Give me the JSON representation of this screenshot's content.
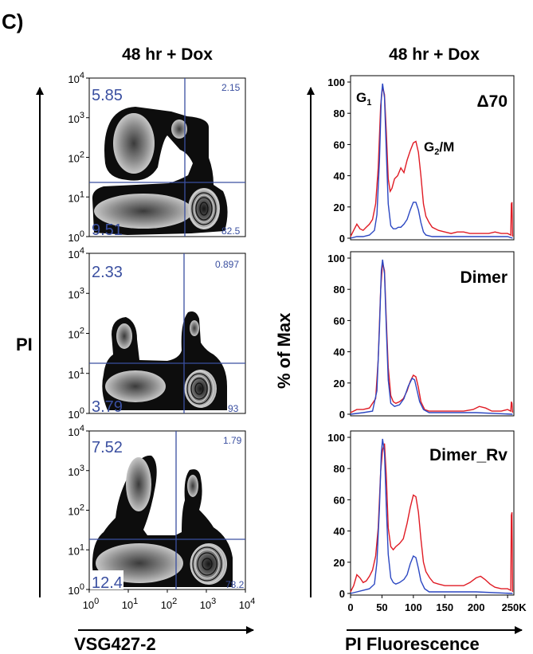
{
  "figure": {
    "panel_label": "C)",
    "flow_header": "48 hr + Dox",
    "hist_header": "48 hr + Dox",
    "flow_ylabel": "PI",
    "flow_xlabel": "VSG427-2",
    "hist_ylabel": "% of Max",
    "hist_xlabel": "PI Fluorescence"
  },
  "colors": {
    "quadrant_line": "#3a4fa0",
    "quadrant_text": "#3a4fa0",
    "series_red": "#e01b24",
    "series_blue": "#2b47c2",
    "contour_dark": "#101010"
  },
  "chart_data": [
    {
      "type": "heatmap",
      "panel": "flow-1",
      "xscale": "log",
      "yscale": "log",
      "xlim": [
        1,
        10000
      ],
      "ylim": [
        1,
        10000
      ],
      "x_ticks": [
        "10⁰",
        "10¹",
        "10²",
        "10³",
        "10⁴"
      ],
      "y_ticks": [
        "10⁰",
        "10¹",
        "10²",
        "10³",
        "10⁴"
      ],
      "quadrant_gate": {
        "x": 180,
        "y": 28
      },
      "quadrants": {
        "upper_left": "5.85",
        "upper_right": "2.15",
        "lower_left": "9.51",
        "lower_right": "82.5"
      }
    },
    {
      "type": "heatmap",
      "panel": "flow-2",
      "xscale": "log",
      "yscale": "log",
      "xlim": [
        1,
        10000
      ],
      "ylim": [
        1,
        10000
      ],
      "x_ticks": [
        "10⁰",
        "10¹",
        "10²",
        "10³",
        "10⁴"
      ],
      "y_ticks": [
        "10⁰",
        "10¹",
        "10²",
        "10³",
        "10⁴"
      ],
      "quadrant_gate": {
        "x": 180,
        "y": 22
      },
      "quadrants": {
        "upper_left": "2.33",
        "upper_right": "0.897",
        "lower_left": "3.79",
        "lower_right": "93"
      }
    },
    {
      "type": "heatmap",
      "panel": "flow-3",
      "xscale": "log",
      "yscale": "log",
      "xlim": [
        1,
        10000
      ],
      "ylim": [
        1,
        10000
      ],
      "x_ticks": [
        "10⁰",
        "10¹",
        "10²",
        "10³",
        "10⁴"
      ],
      "y_ticks": [
        "10⁰",
        "10¹",
        "10²",
        "10³",
        "10⁴"
      ],
      "quadrant_gate": {
        "x": 180,
        "y": 22
      },
      "quadrants": {
        "upper_left": "7.52",
        "upper_right": "1.79",
        "lower_left": "12.4",
        "lower_right": "78.2"
      }
    },
    {
      "type": "line",
      "panel": "hist-1",
      "label": "Δ70",
      "annotations": [
        "G1",
        "G2/M"
      ],
      "xlim": [
        0,
        260
      ],
      "ylim": [
        0,
        100
      ],
      "y_ticks": [
        0,
        20,
        40,
        60,
        80,
        100
      ],
      "series": [
        {
          "values": [
            [
              0,
              1
            ],
            [
              5,
              5
            ],
            [
              10,
              9
            ],
            [
              15,
              6
            ],
            [
              20,
              5
            ],
            [
              25,
              7
            ],
            [
              30,
              9
            ],
            [
              35,
              12
            ],
            [
              40,
              22
            ],
            [
              44,
              45
            ],
            [
              48,
              85
            ],
            [
              51,
              97
            ],
            [
              54,
              92
            ],
            [
              57,
              68
            ],
            [
              60,
              38
            ],
            [
              63,
              30
            ],
            [
              66,
              32
            ],
            [
              70,
              38
            ],
            [
              75,
              40
            ],
            [
              80,
              45
            ],
            [
              85,
              42
            ],
            [
              90,
              50
            ],
            [
              95,
              56
            ],
            [
              100,
              61
            ],
            [
              104,
              62
            ],
            [
              108,
              55
            ],
            [
              112,
              40
            ],
            [
              116,
              22
            ],
            [
              120,
              14
            ],
            [
              125,
              10
            ],
            [
              130,
              7
            ],
            [
              140,
              5
            ],
            [
              150,
              4
            ],
            [
              160,
              3
            ],
            [
              170,
              4
            ],
            [
              180,
              4
            ],
            [
              190,
              3
            ],
            [
              200,
              3
            ],
            [
              210,
              3
            ],
            [
              220,
              3
            ],
            [
              230,
              4
            ],
            [
              240,
              3
            ],
            [
              250,
              3
            ],
            [
              255,
              2
            ],
            [
              256,
              22
            ],
            [
              257,
              23
            ],
            [
              258,
              1
            ]
          ]
        },
        {
          "values": [
            [
              0,
              0
            ],
            [
              10,
              1
            ],
            [
              20,
              1
            ],
            [
              30,
              2
            ],
            [
              38,
              5
            ],
            [
              42,
              15
            ],
            [
              46,
              50
            ],
            [
              49,
              90
            ],
            [
              51,
              99
            ],
            [
              54,
              90
            ],
            [
              57,
              55
            ],
            [
              60,
              22
            ],
            [
              64,
              8
            ],
            [
              68,
              6
            ],
            [
              72,
              6
            ],
            [
              76,
              7
            ],
            [
              80,
              7
            ],
            [
              85,
              9
            ],
            [
              90,
              12
            ],
            [
              95,
              18
            ],
            [
              100,
              23
            ],
            [
              104,
              23
            ],
            [
              108,
              18
            ],
            [
              112,
              10
            ],
            [
              116,
              4
            ],
            [
              120,
              2
            ],
            [
              130,
              1
            ],
            [
              150,
              1
            ],
            [
              200,
              1
            ],
            [
              250,
              1
            ],
            [
              258,
              0
            ]
          ]
        }
      ]
    },
    {
      "type": "line",
      "panel": "hist-2",
      "label": "Dimer",
      "xlim": [
        0,
        260
      ],
      "ylim": [
        0,
        100
      ],
      "y_ticks": [
        0,
        20,
        40,
        60,
        80,
        100
      ],
      "series": [
        {
          "values": [
            [
              0,
              1
            ],
            [
              10,
              3
            ],
            [
              20,
              3
            ],
            [
              30,
              4
            ],
            [
              40,
              10
            ],
            [
              44,
              35
            ],
            [
              48,
              80
            ],
            [
              51,
              97
            ],
            [
              54,
              92
            ],
            [
              57,
              60
            ],
            [
              60,
              30
            ],
            [
              64,
              12
            ],
            [
              68,
              8
            ],
            [
              72,
              7
            ],
            [
              78,
              8
            ],
            [
              84,
              10
            ],
            [
              90,
              15
            ],
            [
              95,
              21
            ],
            [
              100,
              25
            ],
            [
              104,
              24
            ],
            [
              108,
              17
            ],
            [
              112,
              8
            ],
            [
              118,
              3
            ],
            [
              125,
              2
            ],
            [
              140,
              2
            ],
            [
              160,
              2
            ],
            [
              180,
              2
            ],
            [
              195,
              3
            ],
            [
              205,
              5
            ],
            [
              215,
              4
            ],
            [
              225,
              2
            ],
            [
              240,
              2
            ],
            [
              250,
              3
            ],
            [
              255,
              2
            ],
            [
              256,
              8
            ],
            [
              257,
              7
            ],
            [
              258,
              1
            ]
          ]
        },
        {
          "values": [
            [
              0,
              0
            ],
            [
              20,
              1
            ],
            [
              35,
              2
            ],
            [
              42,
              15
            ],
            [
              46,
              55
            ],
            [
              49,
              92
            ],
            [
              51,
              99
            ],
            [
              54,
              90
            ],
            [
              57,
              55
            ],
            [
              60,
              22
            ],
            [
              64,
              7
            ],
            [
              70,
              5
            ],
            [
              78,
              6
            ],
            [
              85,
              10
            ],
            [
              92,
              18
            ],
            [
              98,
              23
            ],
            [
              102,
              22
            ],
            [
              106,
              15
            ],
            [
              110,
              8
            ],
            [
              116,
              3
            ],
            [
              125,
              1
            ],
            [
              150,
              1
            ],
            [
              200,
              1
            ],
            [
              258,
              0
            ]
          ]
        }
      ]
    },
    {
      "type": "line",
      "panel": "hist-3",
      "label": "Dimer_Rv",
      "xlim": [
        0,
        260
      ],
      "ylim": [
        0,
        100
      ],
      "y_ticks": [
        0,
        20,
        40,
        60,
        80,
        100
      ],
      "series": [
        {
          "values": [
            [
              0,
              1
            ],
            [
              5,
              5
            ],
            [
              10,
              12
            ],
            [
              15,
              10
            ],
            [
              20,
              7
            ],
            [
              25,
              8
            ],
            [
              30,
              11
            ],
            [
              35,
              15
            ],
            [
              40,
              24
            ],
            [
              44,
              42
            ],
            [
              48,
              78
            ],
            [
              51,
              92
            ],
            [
              54,
              96
            ],
            [
              57,
              75
            ],
            [
              60,
              42
            ],
            [
              64,
              30
            ],
            [
              68,
              28
            ],
            [
              72,
              30
            ],
            [
              78,
              32
            ],
            [
              84,
              35
            ],
            [
              90,
              45
            ],
            [
              95,
              55
            ],
            [
              100,
              63
            ],
            [
              104,
              62
            ],
            [
              108,
              52
            ],
            [
              112,
              35
            ],
            [
              116,
              20
            ],
            [
              120,
              14
            ],
            [
              126,
              10
            ],
            [
              132,
              7
            ],
            [
              140,
              6
            ],
            [
              150,
              5
            ],
            [
              160,
              5
            ],
            [
              170,
              5
            ],
            [
              180,
              5
            ],
            [
              190,
              7
            ],
            [
              200,
              10
            ],
            [
              207,
              11
            ],
            [
              214,
              9
            ],
            [
              222,
              6
            ],
            [
              230,
              4
            ],
            [
              240,
              3
            ],
            [
              250,
              3
            ],
            [
              255,
              2
            ],
            [
              256,
              50
            ],
            [
              257,
              52
            ],
            [
              258,
              1
            ]
          ]
        },
        {
          "values": [
            [
              0,
              0
            ],
            [
              10,
              1
            ],
            [
              20,
              2
            ],
            [
              30,
              3
            ],
            [
              38,
              6
            ],
            [
              42,
              20
            ],
            [
              46,
              55
            ],
            [
              49,
              90
            ],
            [
              51,
              99
            ],
            [
              54,
              90
            ],
            [
              57,
              55
            ],
            [
              60,
              25
            ],
            [
              64,
              10
            ],
            [
              68,
              7
            ],
            [
              72,
              6
            ],
            [
              78,
              7
            ],
            [
              85,
              9
            ],
            [
              90,
              12
            ],
            [
              95,
              19
            ],
            [
              100,
              24
            ],
            [
              104,
              23
            ],
            [
              108,
              16
            ],
            [
              112,
              8
            ],
            [
              118,
              3
            ],
            [
              125,
              1
            ],
            [
              150,
              1
            ],
            [
              200,
              1
            ],
            [
              258,
              0
            ]
          ]
        }
      ]
    }
  ]
}
